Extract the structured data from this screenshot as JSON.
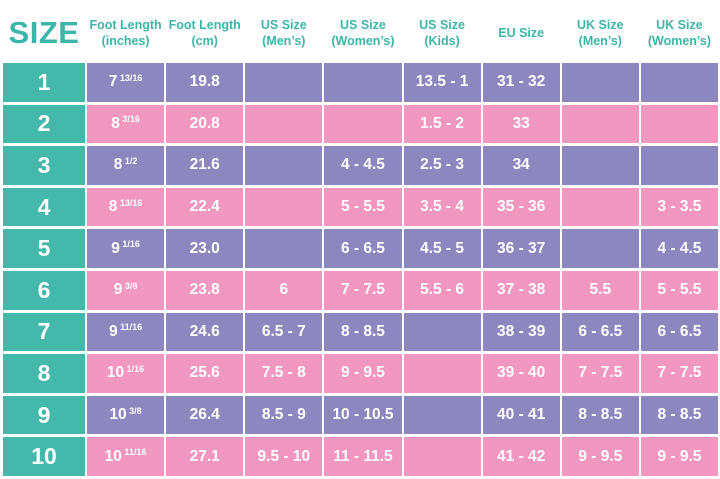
{
  "chart_data": {
    "type": "table",
    "columns": [
      "SIZE",
      "Foot Length (inches)",
      "Foot Length (cm)",
      "US Size (Men’s)",
      "US Size (Women’s)",
      "US Size (Kids)",
      "EU Size",
      "UK Size (Men’s)",
      "UK Size (Women’s)"
    ],
    "rows": [
      [
        "1",
        "7 13/16",
        "19.8",
        "",
        "",
        "13.5 - 1",
        "31 - 32",
        "",
        ""
      ],
      [
        "2",
        "8 3/16",
        "20.8",
        "",
        "",
        "1.5 - 2",
        "33",
        "",
        ""
      ],
      [
        "3",
        "8 1/2",
        "21.6",
        "",
        "4 - 4.5",
        "2.5 - 3",
        "34",
        "",
        ""
      ],
      [
        "4",
        "8 13/16",
        "22.4",
        "",
        "5 - 5.5",
        "3.5 - 4",
        "35 - 36",
        "",
        "3 - 3.5"
      ],
      [
        "5",
        "9 1/16",
        "23.0",
        "",
        "6 - 6.5",
        "4.5 - 5",
        "36 - 37",
        "",
        "4 - 4.5"
      ],
      [
        "6",
        "9 3/8",
        "23.8",
        "6",
        "7 - 7.5",
        "5.5 - 6",
        "37 - 38",
        "5.5",
        "5 - 5.5"
      ],
      [
        "7",
        "9 11/16",
        "24.6",
        "6.5 - 7",
        "8 - 8.5",
        "",
        "38 - 39",
        "6 - 6.5",
        "6 - 6.5"
      ],
      [
        "8",
        "10 1/16",
        "25.6",
        "7.5 - 8",
        "9 - 9.5",
        "",
        "39 - 40",
        "7 - 7.5",
        "7 - 7.5"
      ],
      [
        "9",
        "10 3/8",
        "26.4",
        "8.5 - 9",
        "10 - 10.5",
        "",
        "40 - 41",
        "8 - 8.5",
        "8 - 8.5"
      ],
      [
        "10",
        "10 11/16",
        "27.1",
        "9.5 - 10",
        "11 - 11.5",
        "",
        "41 - 42",
        "9 - 9.5",
        "9 - 9.5"
      ]
    ],
    "row_stripe_pattern": [
      "purple",
      "pink"
    ],
    "size_column_color_name": "teal"
  },
  "colors": {
    "teal": "#45B8AC",
    "purple": "#8C87BF",
    "pink": "#F297BF",
    "header_text": "#3DB5A8",
    "cell_text": "#FFFFFF",
    "background": "#FFFFFF"
  }
}
